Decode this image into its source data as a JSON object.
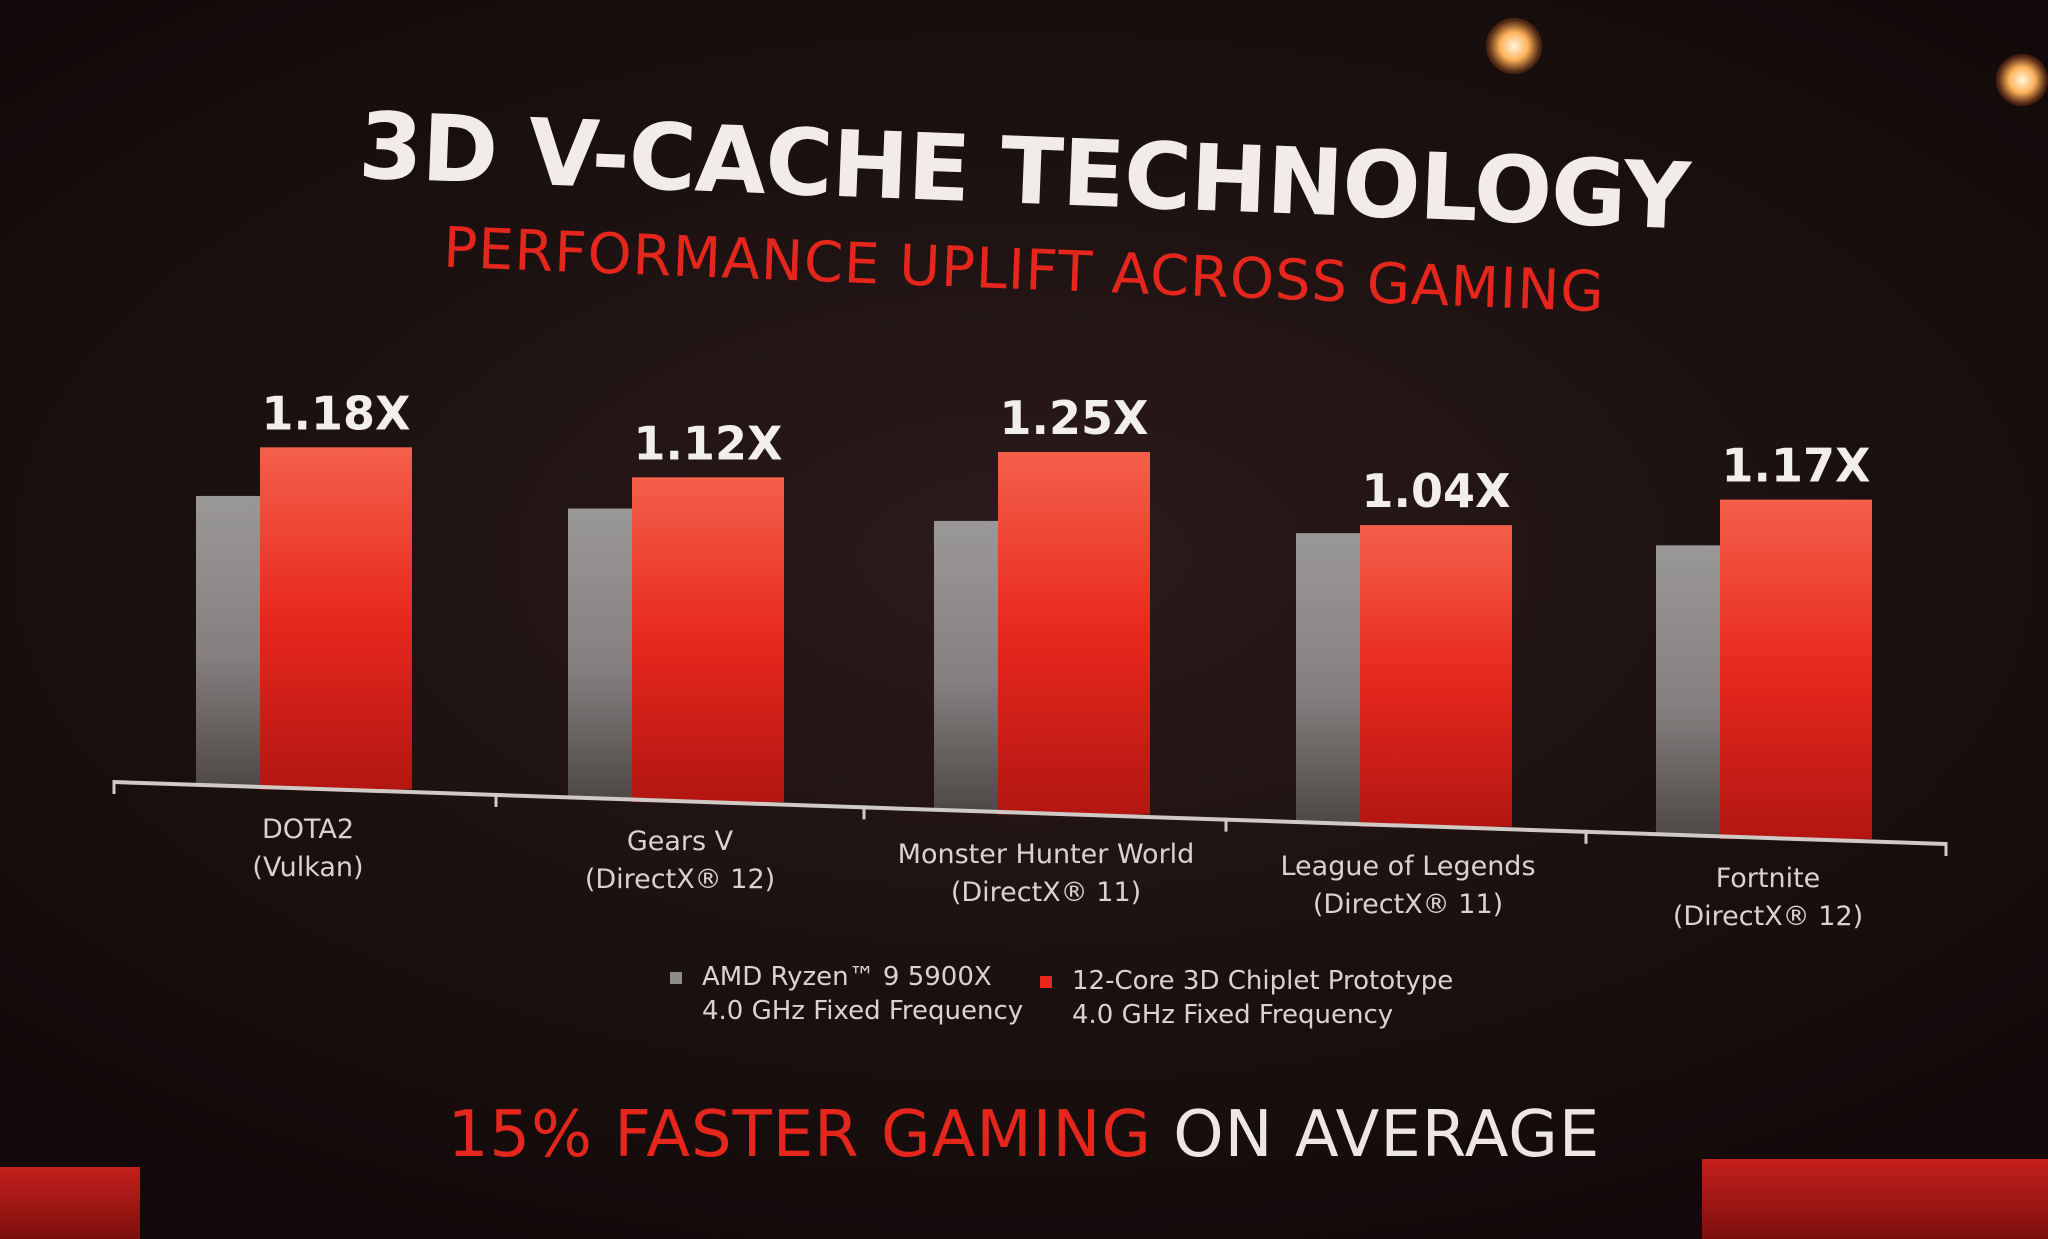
{
  "slide": {
    "title": "3D V-CACHE TECHNOLOGY",
    "subtitle": "PERFORMANCE UPLIFT ACROSS GAMING",
    "footer_highlight": "15% FASTER GAMING",
    "footer_rest": " ON AVERAGE"
  },
  "legend": [
    {
      "line1": "AMD Ryzen™ 9 5900X",
      "line2": "4.0 GHz Fixed Frequency"
    },
    {
      "line1": "12-Core 3D Chiplet Prototype",
      "line2": "4.0 GHz Fixed Frequency"
    }
  ],
  "colors": {
    "baseline": "#8f8d8c",
    "prototype": "#e8281e",
    "accent": "#e5261d"
  },
  "chart_data": {
    "type": "bar",
    "title": "3D V-CACHE TECHNOLOGY",
    "subtitle": "PERFORMANCE UPLIFT ACROSS GAMING",
    "categories": [
      {
        "line1": "DOTA2",
        "line2": "(Vulkan)"
      },
      {
        "line1": "Gears V",
        "line2": "(DirectX® 12)"
      },
      {
        "line1": "Monster Hunter World",
        "line2": "(DirectX® 11)"
      },
      {
        "line1": "League of Legends",
        "line2": "(DirectX® 11)"
      },
      {
        "line1": "Fortnite",
        "line2": "(DirectX® 12)"
      }
    ],
    "series": [
      {
        "name": "AMD Ryzen™ 9 5900X 4.0 GHz Fixed Frequency",
        "values": [
          1.0,
          1.0,
          1.0,
          1.0,
          1.0
        ]
      },
      {
        "name": "12-Core 3D Chiplet Prototype 4.0 GHz Fixed Frequency",
        "values": [
          1.18,
          1.12,
          1.25,
          1.04,
          1.17
        ]
      }
    ],
    "data_labels": [
      "1.18X",
      "1.12X",
      "1.25X",
      "1.04X",
      "1.17X"
    ],
    "ylim": [
      0,
      1.3
    ],
    "grid": false,
    "legend_position": "bottom"
  }
}
